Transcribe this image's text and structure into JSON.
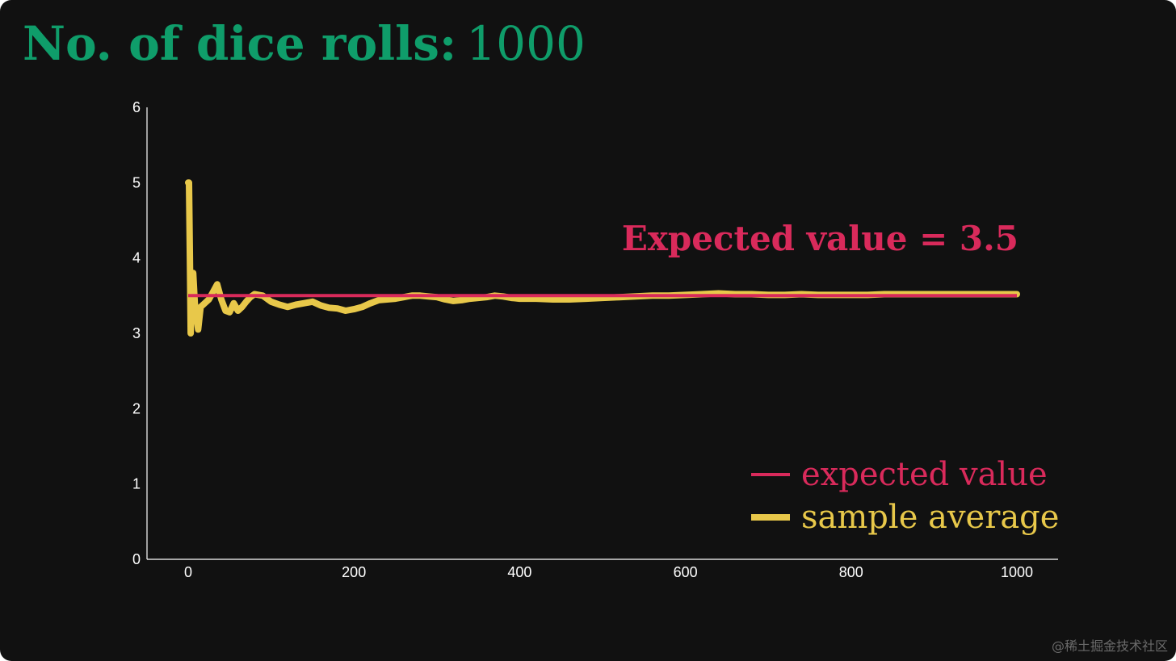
{
  "title": {
    "label": "No. of dice rolls:",
    "value": "1000"
  },
  "watermark": "@稀土掘金技术社区",
  "colors": {
    "background": "#111111",
    "title": "#0f9d6a",
    "expected": "#d92a5b",
    "sample": "#e8c84a",
    "axis": "#ffffff"
  },
  "chart_data": {
    "type": "line",
    "xlim": [
      0,
      1000
    ],
    "ylim": [
      0,
      6
    ],
    "x_ticks": [
      "0",
      "200",
      "400",
      "600",
      "800",
      "1000"
    ],
    "y_ticks": [
      "0",
      "1",
      "2",
      "3",
      "4",
      "5",
      "6"
    ],
    "grid": false,
    "annotation": "Expected value = 3.5",
    "legend_position": "bottom-right",
    "series": [
      {
        "name": "expected value",
        "color": "#d92a5b",
        "points": [
          [
            0,
            3.5
          ],
          [
            1000,
            3.5
          ]
        ]
      },
      {
        "name": "sample average",
        "color": "#e8c84a",
        "points": [
          [
            0,
            5.0
          ],
          [
            1,
            5.0
          ],
          [
            2,
            4.0
          ],
          [
            3,
            3.0
          ],
          [
            4,
            3.8
          ],
          [
            5,
            3.2
          ],
          [
            6,
            3.8
          ],
          [
            8,
            3.4
          ],
          [
            10,
            3.2
          ],
          [
            12,
            3.05
          ],
          [
            15,
            3.35
          ],
          [
            20,
            3.4
          ],
          [
            25,
            3.45
          ],
          [
            30,
            3.55
          ],
          [
            35,
            3.65
          ],
          [
            40,
            3.45
          ],
          [
            45,
            3.3
          ],
          [
            50,
            3.28
          ],
          [
            55,
            3.4
          ],
          [
            60,
            3.3
          ],
          [
            65,
            3.35
          ],
          [
            70,
            3.42
          ],
          [
            75,
            3.48
          ],
          [
            80,
            3.52
          ],
          [
            90,
            3.5
          ],
          [
            100,
            3.42
          ],
          [
            110,
            3.38
          ],
          [
            120,
            3.35
          ],
          [
            130,
            3.38
          ],
          [
            140,
            3.4
          ],
          [
            150,
            3.42
          ],
          [
            160,
            3.37
          ],
          [
            170,
            3.34
          ],
          [
            180,
            3.33
          ],
          [
            190,
            3.3
          ],
          [
            200,
            3.32
          ],
          [
            210,
            3.35
          ],
          [
            220,
            3.4
          ],
          [
            230,
            3.44
          ],
          [
            240,
            3.45
          ],
          [
            250,
            3.46
          ],
          [
            260,
            3.48
          ],
          [
            270,
            3.5
          ],
          [
            280,
            3.5
          ],
          [
            290,
            3.49
          ],
          [
            300,
            3.48
          ],
          [
            310,
            3.45
          ],
          [
            320,
            3.43
          ],
          [
            330,
            3.44
          ],
          [
            340,
            3.46
          ],
          [
            350,
            3.47
          ],
          [
            360,
            3.48
          ],
          [
            370,
            3.5
          ],
          [
            380,
            3.49
          ],
          [
            390,
            3.47
          ],
          [
            400,
            3.46
          ],
          [
            420,
            3.46
          ],
          [
            440,
            3.45
          ],
          [
            460,
            3.45
          ],
          [
            480,
            3.46
          ],
          [
            500,
            3.47
          ],
          [
            520,
            3.48
          ],
          [
            540,
            3.49
          ],
          [
            560,
            3.5
          ],
          [
            580,
            3.5
          ],
          [
            600,
            3.51
          ],
          [
            620,
            3.52
          ],
          [
            640,
            3.53
          ],
          [
            660,
            3.52
          ],
          [
            680,
            3.52
          ],
          [
            700,
            3.51
          ],
          [
            720,
            3.51
          ],
          [
            740,
            3.52
          ],
          [
            760,
            3.51
          ],
          [
            780,
            3.51
          ],
          [
            800,
            3.51
          ],
          [
            820,
            3.51
          ],
          [
            840,
            3.52
          ],
          [
            860,
            3.52
          ],
          [
            880,
            3.52
          ],
          [
            900,
            3.52
          ],
          [
            920,
            3.52
          ],
          [
            940,
            3.52
          ],
          [
            960,
            3.52
          ],
          [
            980,
            3.52
          ],
          [
            1000,
            3.52
          ]
        ]
      }
    ]
  }
}
